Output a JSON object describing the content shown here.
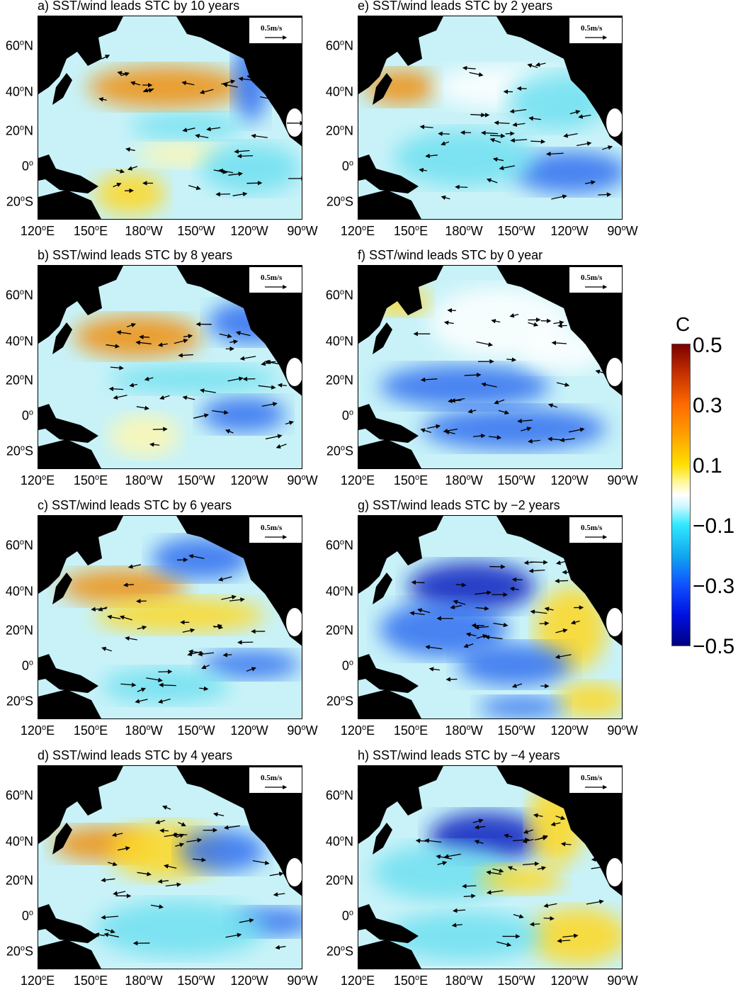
{
  "panels": [
    {
      "title": "a) SST/wind leads STC by 10 years",
      "pattern": "a"
    },
    {
      "title": "b) SST/wind leads STC by 8 years",
      "pattern": "b"
    },
    {
      "title": "c) SST/wind leads STC by 6 years",
      "pattern": "c"
    },
    {
      "title": "d) SST/wind leads STC by 4 years",
      "pattern": "d"
    },
    {
      "title": "e) SST/wind leads STC by 2 years",
      "pattern": "e"
    },
    {
      "title": "f) SST/wind leads STC by 0 year",
      "pattern": "f"
    },
    {
      "title": "g) SST/wind leads STC by −2 years",
      "pattern": "g"
    },
    {
      "title": "h) SST/wind leads STC by −4 years",
      "pattern": "h"
    }
  ],
  "axes": {
    "lat_ticks": [
      "60",
      "40",
      "20",
      "0",
      "20"
    ],
    "lat_suffix": [
      "N",
      "N",
      "N",
      "",
      "S"
    ],
    "lon_ticks": [
      "120",
      "150",
      "180",
      "150",
      "120",
      "90"
    ],
    "lon_suffix": [
      "E",
      "E",
      "W",
      "W",
      "W",
      "W"
    ],
    "degree": "o"
  },
  "vector_legend": "0.5m/s",
  "colorbar": {
    "unit": "C",
    "ticks": [
      "0.5",
      "0.3",
      "0.1",
      "−0.1",
      "−0.3",
      "−0.5"
    ],
    "range": [
      -0.5,
      0.5
    ],
    "colormap": "dark red-orange-yellow-white-cyan-blue-navy"
  },
  "colors": {
    "land": "#000000",
    "positive": "#f0a000",
    "negative": "#2060f0",
    "neutral": "#ffffff"
  }
}
